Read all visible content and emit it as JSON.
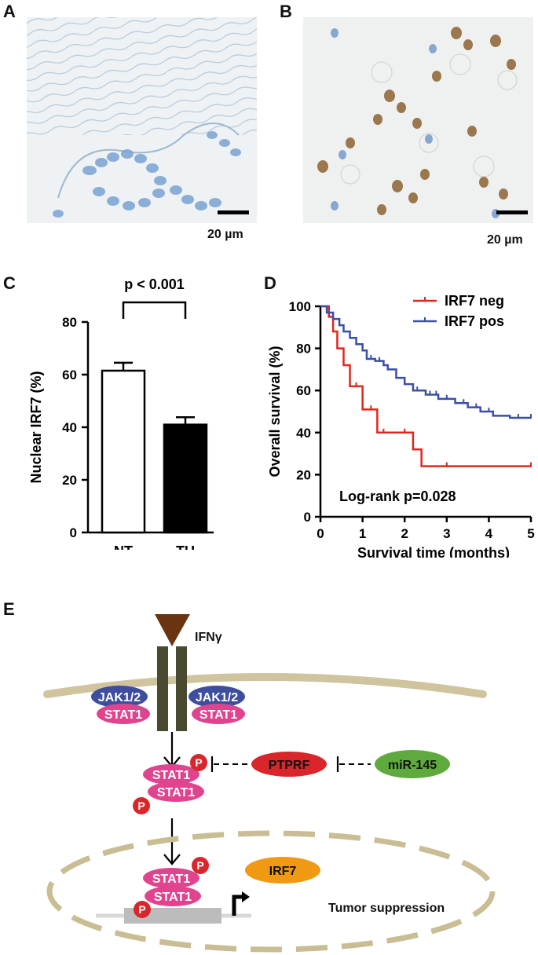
{
  "panels": {
    "a": {
      "letter": "A",
      "scale_label": "20 µm"
    },
    "b": {
      "letter": "B",
      "scale_label": "20 µm"
    },
    "c": {
      "letter": "C"
    },
    "d": {
      "letter": "D"
    },
    "e": {
      "letter": "E"
    }
  },
  "chart_data": [
    {
      "type": "bar",
      "panel": "C",
      "ylabel": "Nuclear IRF7 (%)",
      "xlabel": "",
      "categories": [
        "NT",
        "TU"
      ],
      "values": [
        61.5,
        41.0
      ],
      "errors": [
        3.0,
        2.8
      ],
      "colors": [
        "#ffffff",
        "#000000"
      ],
      "ylim": [
        0,
        80
      ],
      "yticks": [
        "0",
        "20",
        "40",
        "60",
        "80"
      ],
      "annotation": "p < 0.001"
    },
    {
      "type": "line",
      "subtype": "kaplan-meier",
      "panel": "D",
      "xlabel": "Survival time (months)",
      "ylabel": "Overall survival (%)",
      "xlim": [
        0,
        5
      ],
      "ylim": [
        0,
        100
      ],
      "xticks": [
        "0",
        "1",
        "2",
        "3",
        "4",
        "5"
      ],
      "yticks": [
        "0",
        "20",
        "40",
        "60",
        "80",
        "100"
      ],
      "annotation": "Log-rank p=0.028",
      "series": [
        {
          "name": "IRF7 neg",
          "color": "#e0261f",
          "x": [
            0,
            0.2,
            0.3,
            0.4,
            0.55,
            0.7,
            0.85,
            1.0,
            1.2,
            1.35,
            1.5,
            2.0,
            2.2,
            2.4,
            5.0
          ],
          "y": [
            100,
            95,
            88,
            80,
            72,
            62,
            62,
            51,
            51,
            40,
            40,
            40,
            32,
            24,
            24
          ],
          "censor_x": [
            0.85,
            1.2,
            1.5,
            2.0,
            3.0,
            5.0
          ],
          "censor_y": [
            62,
            51,
            40,
            40,
            24,
            24
          ]
        },
        {
          "name": "IRF7 pos",
          "color": "#3a4fa8",
          "x": [
            0,
            0.15,
            0.3,
            0.45,
            0.55,
            0.7,
            0.85,
            1.0,
            1.1,
            1.3,
            1.5,
            1.6,
            1.8,
            2.0,
            2.2,
            2.5,
            2.8,
            3.2,
            3.5,
            3.8,
            4.1,
            4.5,
            5.0
          ],
          "y": [
            100,
            97,
            94,
            91,
            88,
            85,
            82,
            79,
            75,
            74,
            72,
            70,
            66,
            63,
            60,
            58,
            56,
            54,
            52,
            50,
            48,
            47,
            47
          ],
          "censor_x": [
            1.2,
            1.4,
            2.3,
            2.6,
            2.75,
            3.0,
            3.4,
            3.7,
            4.0,
            4.7,
            5.0
          ],
          "censor_y": [
            75,
            74,
            60,
            58,
            58,
            56,
            54,
            52,
            50,
            47,
            47
          ]
        }
      ]
    }
  ],
  "pathway": {
    "ligand": "IFNγ",
    "jak_left": "JAK1/2",
    "jak_right": "JAK1/2",
    "stat_left": "STAT1",
    "stat_right": "STAT1",
    "stat_dimer1_top": "STAT1",
    "stat_dimer1_bottom": "STAT1",
    "stat_dimer2_top": "STAT1",
    "stat_dimer2_bottom": "STAT1",
    "p1": "P",
    "p2": "P",
    "p3": "P",
    "p4": "P",
    "ptprf": "PTPRF",
    "mir": "miR-145",
    "irf7": "IRF7",
    "outcome": "Tumor suppression",
    "colors": {
      "jak": "#3f4d9e",
      "stat": "#e0448f",
      "phospho": "#d8262b",
      "ptprf": "#d8262b",
      "mir": "#5eaa3c",
      "irf7": "#ef9a12",
      "receptor": "#4a4a30",
      "ligand": "#6b3410",
      "membrane": "#cfc49e"
    }
  }
}
